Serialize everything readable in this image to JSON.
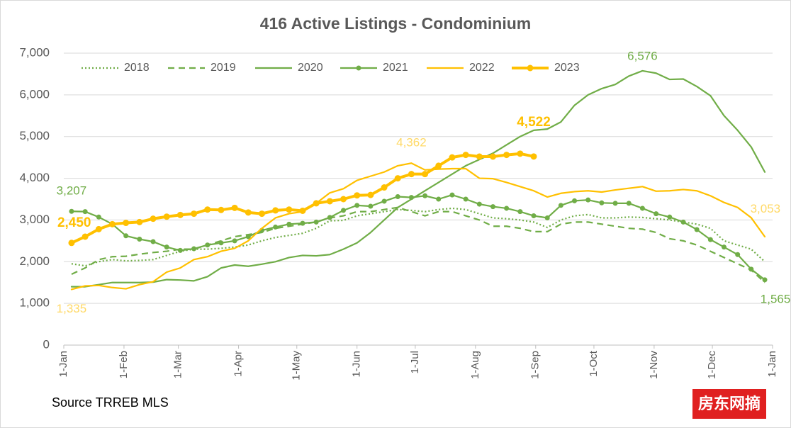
{
  "chart_data": {
    "type": "line",
    "title": "416 Active Listings - Condominium",
    "source": "Source TRREB MLS",
    "watermark": "房东网摘",
    "xlim": [
      0,
      365
    ],
    "xticks": [
      {
        "value": 0,
        "label": "1-Jan"
      },
      {
        "value": 31,
        "label": "1-Feb"
      },
      {
        "value": 59,
        "label": "1-Mar"
      },
      {
        "value": 90,
        "label": "1-Apr"
      },
      {
        "value": 120,
        "label": "1-May"
      },
      {
        "value": 151,
        "label": "1-Jun"
      },
      {
        "value": 181,
        "label": "1-Jul"
      },
      {
        "value": 212,
        "label": "1-Aug"
      },
      {
        "value": 243,
        "label": "1-Sep"
      },
      {
        "value": 273,
        "label": "1-Oct"
      },
      {
        "value": 304,
        "label": "1-Nov"
      },
      {
        "value": 334,
        "label": "1-Dec"
      },
      {
        "value": 365,
        "label": "1-Jan"
      }
    ],
    "ylim": [
      0,
      7000
    ],
    "yticks": [
      0,
      {
        "value": 1000,
        "label": "1,000"
      },
      {
        "value": 2000,
        "label": "2,000"
      },
      {
        "value": 3000,
        "label": "3,000"
      },
      {
        "value": 4000,
        "label": "4,000"
      },
      {
        "value": 5000,
        "label": "5,000"
      },
      {
        "value": 6000,
        "label": "6,000"
      },
      {
        "value": 7000,
        "label": "7,000"
      }
    ],
    "legend": "top",
    "x": [
      4,
      11,
      18,
      25,
      32,
      39,
      46,
      53,
      60,
      67,
      74,
      81,
      88,
      95,
      102,
      109,
      116,
      123,
      130,
      137,
      144,
      151,
      158,
      165,
      172,
      179,
      186,
      193,
      200,
      207,
      214,
      221,
      228,
      235,
      242,
      249,
      256,
      263,
      270,
      277,
      284,
      291,
      298,
      305,
      312,
      319,
      326,
      333,
      340,
      347,
      354,
      361
    ],
    "series": [
      {
        "name": "2018",
        "color": "#70ad47",
        "line_style": "dotted",
        "markers": false,
        "values": [
          1950,
          1900,
          2000,
          2050,
          2020,
          2030,
          2050,
          2150,
          2250,
          2300,
          2300,
          2320,
          2350,
          2400,
          2500,
          2580,
          2630,
          2680,
          2800,
          2980,
          2990,
          3100,
          3150,
          3200,
          3250,
          3230,
          3200,
          3250,
          3280,
          3250,
          3150,
          3050,
          3030,
          3000,
          2950,
          2820,
          3000,
          3100,
          3130,
          3050,
          3050,
          3070,
          3060,
          3030,
          3000,
          2950,
          2900,
          2800,
          2500,
          2400,
          2300,
          2000
        ]
      },
      {
        "name": "2019",
        "color": "#70ad47",
        "line_style": "dashed",
        "markers": false,
        "values": [
          1700,
          1850,
          2050,
          2120,
          2130,
          2180,
          2220,
          2250,
          2300,
          2300,
          2400,
          2500,
          2600,
          2650,
          2700,
          2800,
          2850,
          2900,
          2950,
          3050,
          3100,
          3200,
          3200,
          3250,
          3300,
          3200,
          3100,
          3200,
          3200,
          3100,
          3000,
          2850,
          2850,
          2800,
          2720,
          2720,
          2900,
          2950,
          2950,
          2900,
          2850,
          2800,
          2780,
          2700,
          2550,
          2500,
          2400,
          2250,
          2100,
          1950,
          1800,
          1500
        ]
      },
      {
        "name": "2020",
        "color": "#70ad47",
        "line_style": "solid",
        "markers": false,
        "values": [
          1400,
          1400,
          1450,
          1500,
          1500,
          1500,
          1510,
          1570,
          1560,
          1540,
          1640,
          1850,
          1920,
          1890,
          1940,
          2000,
          2100,
          2150,
          2140,
          2170,
          2300,
          2450,
          2700,
          3000,
          3300,
          3500,
          3700,
          3900,
          4100,
          4300,
          4450,
          4600,
          4800,
          5000,
          5150,
          5180,
          5350,
          5750,
          6000,
          6150,
          6250,
          6450,
          6576,
          6520,
          6370,
          6380,
          6200,
          5980,
          5500,
          5150,
          4750,
          4150
        ],
        "value_labels": [
          null,
          null,
          null,
          null,
          null,
          null,
          null,
          null,
          null,
          null,
          null,
          null,
          null,
          null,
          null,
          null,
          null,
          null,
          null,
          null,
          null,
          null,
          null,
          null,
          null,
          null,
          null,
          null,
          null,
          null,
          null,
          null,
          null,
          null,
          null,
          null,
          null,
          null,
          null,
          null,
          null,
          null,
          "6,576",
          null,
          null,
          null,
          null,
          null,
          null,
          null,
          null,
          null
        ]
      },
      {
        "name": "2021",
        "color": "#70ad47",
        "line_style": "solid",
        "markers": true,
        "values": [
          3207,
          3200,
          3070,
          2900,
          2620,
          2540,
          2480,
          2350,
          2270,
          2310,
          2400,
          2450,
          2500,
          2600,
          2750,
          2830,
          2900,
          2920,
          2950,
          3060,
          3230,
          3350,
          3330,
          3450,
          3560,
          3540,
          3580,
          3500,
          3600,
          3500,
          3380,
          3320,
          3280,
          3200,
          3100,
          3050,
          3350,
          3460,
          3480,
          3410,
          3400,
          3400,
          3280,
          3150,
          3070,
          2950,
          2770,
          2530,
          2350,
          2170,
          1820,
          1565
        ],
        "value_labels": [
          "3,207",
          null,
          null,
          null,
          null,
          null,
          null,
          null,
          null,
          null,
          null,
          null,
          null,
          null,
          null,
          null,
          null,
          null,
          null,
          null,
          null,
          null,
          null,
          null,
          null,
          null,
          null,
          null,
          null,
          null,
          null,
          null,
          null,
          null,
          null,
          null,
          null,
          null,
          null,
          null,
          null,
          null,
          null,
          null,
          null,
          null,
          null,
          null,
          null,
          null,
          null,
          "1,565"
        ]
      },
      {
        "name": "2022",
        "color": "#ffc000",
        "line_style": "solid",
        "markers": false,
        "values": [
          1335,
          1420,
          1430,
          1380,
          1350,
          1450,
          1520,
          1750,
          1850,
          2050,
          2120,
          2250,
          2320,
          2500,
          2800,
          3050,
          3150,
          3200,
          3400,
          3650,
          3750,
          3950,
          4050,
          4150,
          4300,
          4362,
          4200,
          4220,
          4230,
          4230,
          4000,
          3990,
          3900,
          3800,
          3700,
          3550,
          3640,
          3680,
          3700,
          3670,
          3720,
          3760,
          3800,
          3690,
          3700,
          3730,
          3700,
          3580,
          3420,
          3300,
          3053,
          2600
        ],
        "value_labels": [
          "1,335",
          null,
          null,
          null,
          null,
          null,
          null,
          null,
          null,
          null,
          null,
          null,
          null,
          null,
          null,
          null,
          null,
          null,
          null,
          null,
          null,
          null,
          null,
          null,
          null,
          "4,362",
          null,
          null,
          null,
          null,
          null,
          null,
          null,
          null,
          null,
          null,
          null,
          null,
          null,
          null,
          null,
          null,
          null,
          null,
          null,
          null,
          null,
          null,
          null,
          null,
          "3,053",
          null
        ]
      },
      {
        "name": "2023",
        "color": "#ffc000",
        "line_style": "bold",
        "markers": true,
        "values": [
          2450,
          2600,
          2780,
          2900,
          2930,
          2950,
          3030,
          3080,
          3120,
          3150,
          3250,
          3240,
          3290,
          3180,
          3150,
          3230,
          3250,
          3220,
          3400,
          3450,
          3500,
          3590,
          3600,
          3780,
          4000,
          4100,
          4100,
          4300,
          4500,
          4560,
          4520,
          4520,
          4560,
          4590,
          4522,
          null,
          null,
          null,
          null,
          null,
          null,
          null,
          null,
          null,
          null,
          null,
          null,
          null,
          null,
          null,
          null,
          null
        ],
        "value_labels": [
          "2,450",
          null,
          null,
          null,
          null,
          null,
          null,
          null,
          null,
          null,
          null,
          null,
          null,
          null,
          null,
          null,
          null,
          null,
          null,
          null,
          null,
          null,
          null,
          null,
          null,
          null,
          null,
          null,
          null,
          null,
          null,
          null,
          null,
          null,
          "4,522",
          null,
          null,
          null,
          null,
          null,
          null,
          null,
          null,
          null,
          null,
          null,
          null,
          null,
          null,
          null,
          null,
          null
        ]
      }
    ]
  }
}
